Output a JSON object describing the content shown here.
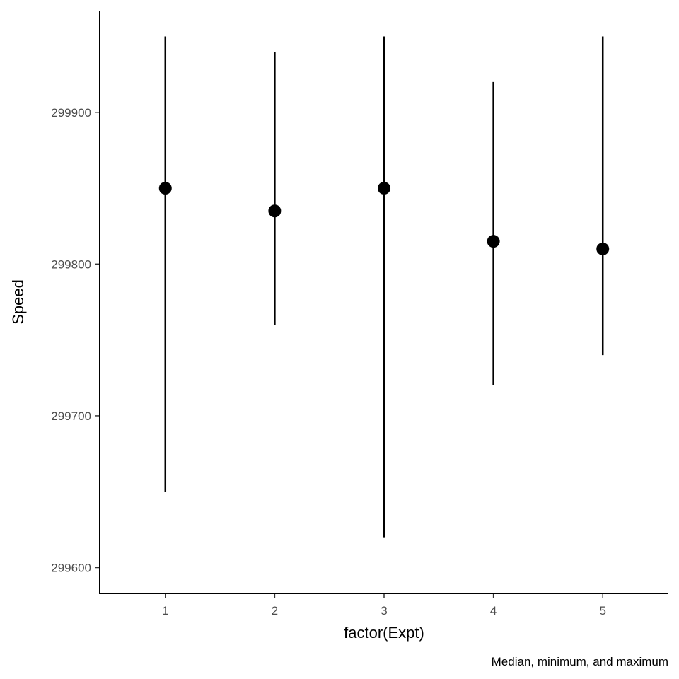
{
  "chart_data": {
    "type": "pointrange",
    "xlabel": "factor(Expt)",
    "ylabel": "Speed",
    "caption": "Median, minimum, and maximum",
    "categories": [
      "1",
      "2",
      "3",
      "4",
      "5"
    ],
    "median": [
      299850,
      299835,
      299850,
      299815,
      299810
    ],
    "min": [
      299650,
      299760,
      299620,
      299720,
      299740
    ],
    "max": [
      299950,
      299940,
      299950,
      299920,
      299950
    ],
    "y_ticks": [
      299600,
      299700,
      299800,
      299900
    ],
    "y_tick_labels": [
      "299600",
      "299700",
      "299800",
      "299900"
    ],
    "ylim": [
      299583,
      299967
    ],
    "grid": false,
    "colors": {
      "marks": "#000000",
      "tick_text": "#4d4d4d"
    }
  }
}
